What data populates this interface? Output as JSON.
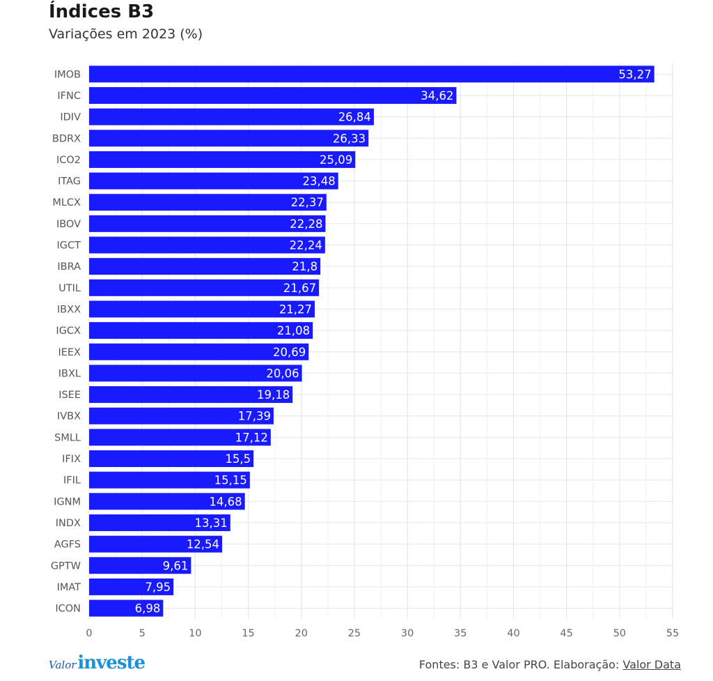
{
  "header": {
    "title": "Índices B3",
    "subtitle": "Variações em 2023 (%)"
  },
  "footer": {
    "logo_valor": "Valor",
    "logo_investe": "investe",
    "source_prefix": "Fontes: B3 e Valor PRO. Elaboração: ",
    "source_link": "Valor Data"
  },
  "colors": {
    "bar": "#1a1aff",
    "grid": "#e6e6e6",
    "label": "#555555",
    "value_text": "#ffffff"
  },
  "chart_data": {
    "type": "bar",
    "orientation": "horizontal",
    "title": "Índices B3",
    "subtitle": "Variações em 2023 (%)",
    "xlim": [
      0,
      55
    ],
    "xticks": [
      0,
      5,
      10,
      15,
      20,
      25,
      30,
      35,
      40,
      45,
      50,
      55
    ],
    "grid": true,
    "categories": [
      "IMOB",
      "IFNC",
      "IDIV",
      "BDRX",
      "ICO2",
      "ITAG",
      "MLCX",
      "IBOV",
      "IGCT",
      "IBRA",
      "UTIL",
      "IBXX",
      "IGCX",
      "IEEX",
      "IBXL",
      "ISEE",
      "IVBX",
      "SMLL",
      "IFIX",
      "IFIL",
      "IGNM",
      "INDX",
      "AGFS",
      "GPTW",
      "IMAT",
      "ICON"
    ],
    "values": [
      53.27,
      34.62,
      26.84,
      26.33,
      25.09,
      23.48,
      22.37,
      22.28,
      22.24,
      21.8,
      21.67,
      21.27,
      21.08,
      20.69,
      20.06,
      19.18,
      17.39,
      17.12,
      15.5,
      15.15,
      14.68,
      13.31,
      12.54,
      9.61,
      7.95,
      6.98
    ],
    "value_labels": [
      "53,27",
      "34,62",
      "26,84",
      "26,33",
      "25,09",
      "23,48",
      "22,37",
      "22,28",
      "22,24",
      "21,8",
      "21,67",
      "21,27",
      "21,08",
      "20,69",
      "20,06",
      "19,18",
      "17,39",
      "17,12",
      "15,5",
      "15,15",
      "14,68",
      "13,31",
      "12,54",
      "9,61",
      "7,95",
      "6,98"
    ]
  }
}
